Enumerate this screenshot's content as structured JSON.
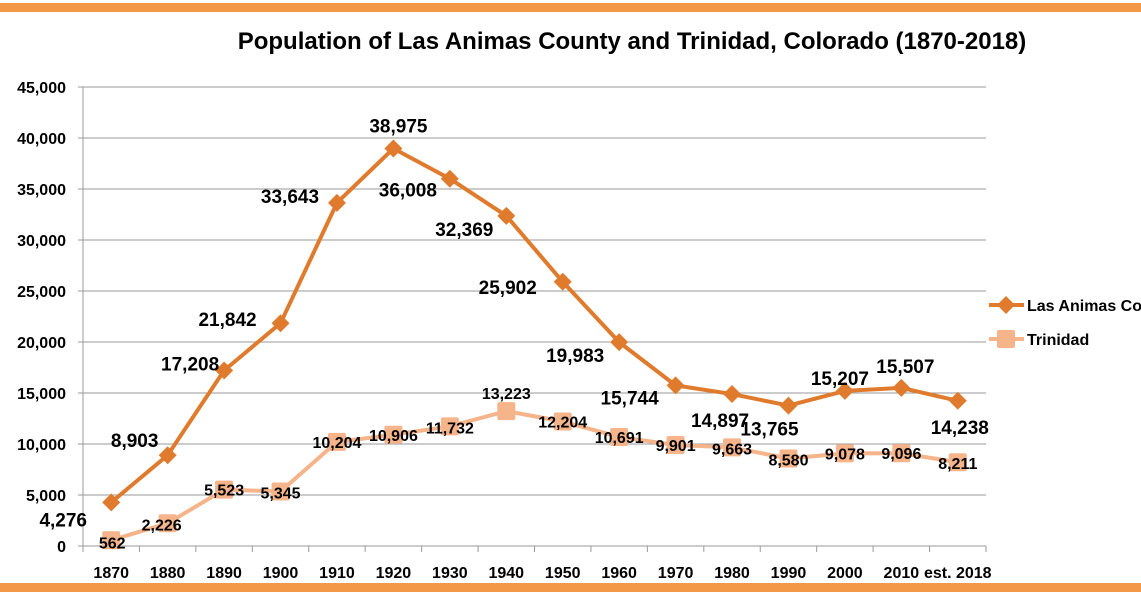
{
  "chart_data": {
    "type": "line",
    "title": "Population of Las Animas County and Trinidad, Colorado (1870-2018)",
    "xlabel": "",
    "ylabel": "",
    "categories": [
      "1870",
      "1880",
      "1890",
      "1900",
      "1910",
      "1920",
      "1930",
      "1940",
      "1950",
      "1960",
      "1970",
      "1980",
      "1990",
      "2000",
      "2010",
      "est. 2018"
    ],
    "ylim": [
      0,
      45000
    ],
    "yticks": [
      "0",
      "5,000",
      "10,000",
      "15,000",
      "20,000",
      "25,000",
      "30,000",
      "35,000",
      "40,000",
      "45,000"
    ],
    "grid": true,
    "legend_position": "right",
    "series": [
      {
        "name": "Las Animas County",
        "color": "#e07b2e",
        "marker": "diamond",
        "values": [
          4276,
          8903,
          17208,
          21842,
          33643,
          38975,
          36008,
          32369,
          25902,
          19983,
          15744,
          14897,
          13765,
          15207,
          15507,
          14238
        ],
        "labels": [
          "4,276",
          "8,903",
          "17,208",
          "21,842",
          "33,643",
          "38,975",
          "36,008",
          "32,369",
          "25,902",
          "19,983",
          "15,744",
          "14,897",
          "13,765",
          "15,207",
          "15,507",
          "14,238"
        ]
      },
      {
        "name": "Trinidad",
        "color": "#f5b48a",
        "marker": "square",
        "values": [
          562,
          2226,
          5523,
          5345,
          10204,
          10906,
          11732,
          13223,
          12204,
          10691,
          9901,
          9663,
          8580,
          9078,
          9096,
          8211
        ],
        "labels": [
          "562",
          "2,226",
          "5,523",
          "5,345",
          "10,204",
          "10,906",
          "11,732",
          "13,223",
          "12,204",
          "10,691",
          "9,901",
          "9,663",
          "8,580",
          "9,078",
          "9,096",
          "8,211"
        ]
      }
    ]
  },
  "frame": {
    "band_color": "#f39847"
  }
}
